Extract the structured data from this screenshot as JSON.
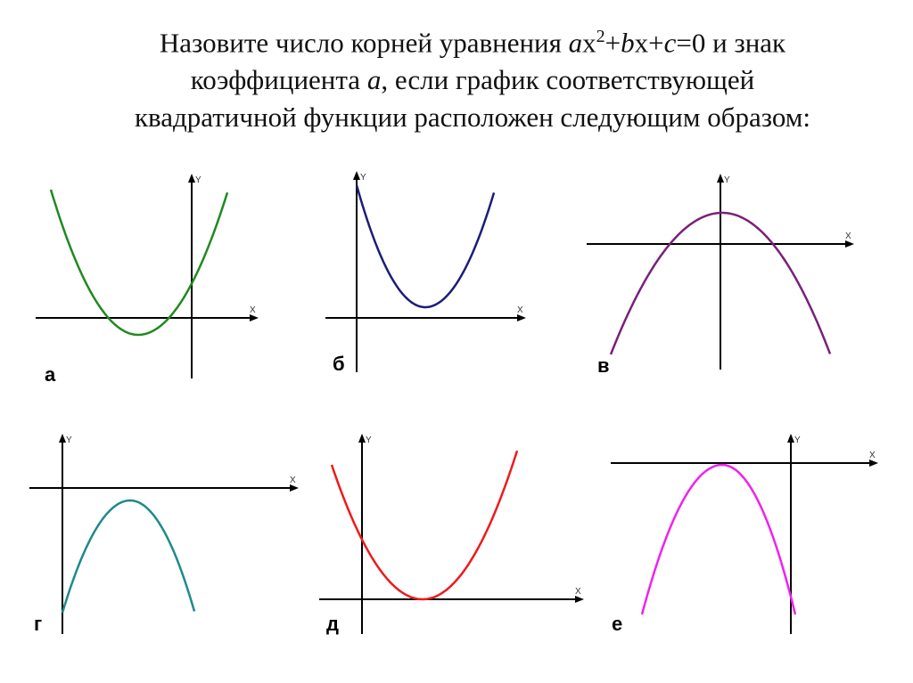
{
  "title": {
    "part1": "Назовите число корней уравнения ",
    "a": "a",
    "x1": "x",
    "sup": "2",
    "plus1": "+",
    "b": "b",
    "x2": "x",
    "plus2": "+",
    "c": "c",
    "eq": "=0 и знак",
    "line2a": "коэффициента ",
    "a2": "a",
    "line2b": ", если график соответствующей",
    "line3": "квадратичной функции расположен следующим образом:"
  },
  "graphs": [
    {
      "label": "а",
      "x_axis": "X",
      "y_axis": "Y",
      "color": "#1f8a1f",
      "opens": "up"
    },
    {
      "label": "б",
      "x_axis": "X",
      "y_axis": "Y",
      "color": "#1c1c7a",
      "opens": "up"
    },
    {
      "label": "в",
      "x_axis": "X",
      "y_axis": "Y",
      "color": "#7b1f7b",
      "opens": "down"
    },
    {
      "label": "г",
      "x_axis": "X",
      "y_axis": "Y",
      "color": "#1f8a8a",
      "opens": "down"
    },
    {
      "label": "д",
      "x_axis": "X",
      "y_axis": "Y",
      "color": "#ee1a1a",
      "opens": "up"
    },
    {
      "label": "е",
      "x_axis": "X",
      "y_axis": "Y",
      "color": "#ee22ee",
      "opens": "down"
    }
  ]
}
